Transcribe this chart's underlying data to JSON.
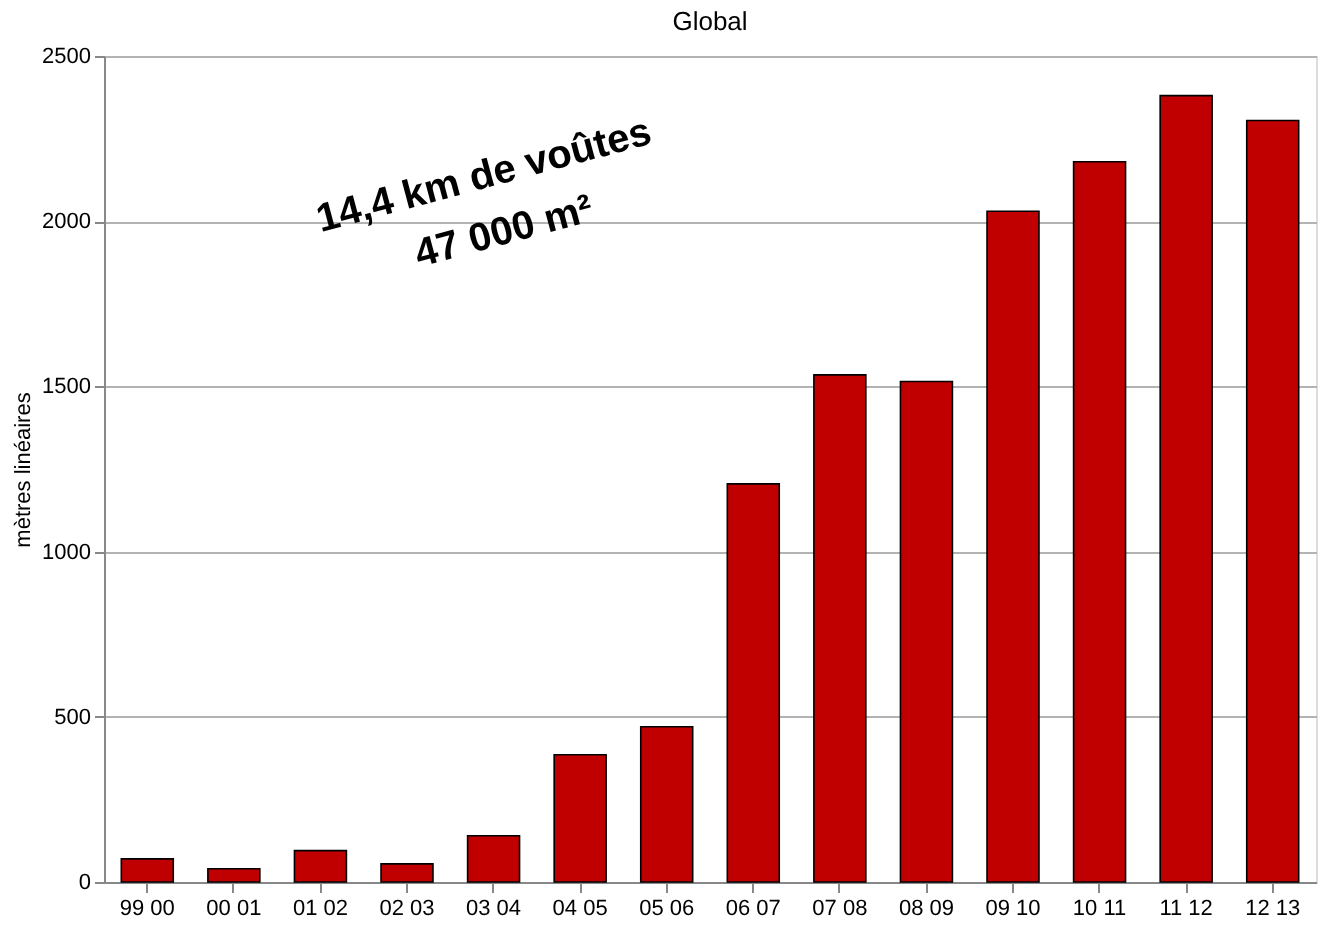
{
  "chart_data": {
    "type": "bar",
    "title": "Global",
    "ylabel": "mètres linéaires",
    "categories": [
      "99 00",
      "00 01",
      "01 02",
      "02 03",
      "03 04",
      "04 05",
      "05 06",
      "06 07",
      "07 08",
      "08 09",
      "09 10",
      "10 11",
      "11 12",
      "12 13"
    ],
    "series": [
      {
        "color": "#c00000",
        "values": [
          70,
          40,
          95,
          55,
          140,
          385,
          470,
          1205,
          1535,
          1515,
          2030,
          2180,
          2380,
          2305
        ]
      }
    ],
    "ylim": [
      0,
      2500
    ],
    "yticks": [
      0,
      500,
      1000,
      1500,
      2000,
      2500
    ],
    "grid": "y",
    "annotations": [
      "14,4 km de voûtes",
      "47 000 m²"
    ]
  }
}
